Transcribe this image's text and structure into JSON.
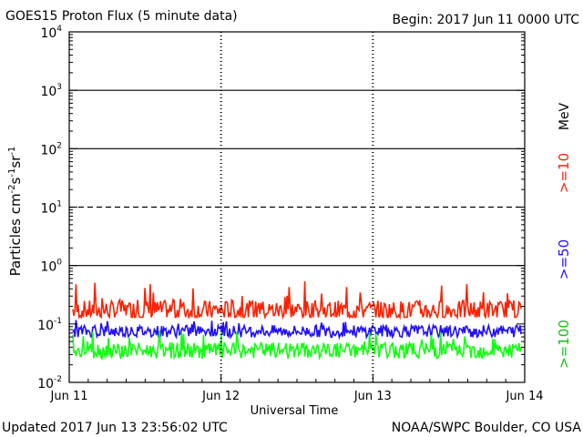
{
  "header": {
    "title": "GOES15 Proton Flux (5 minute data)",
    "begin": "Begin: 2017 Jun 11 0000 UTC"
  },
  "footer": {
    "updated": "Updated 2017 Jun 13 23:56:02 UTC",
    "credit": "NOAA/SWPC Boulder, CO USA"
  },
  "chart_data": {
    "type": "line",
    "y_scale": "log",
    "ylim": [
      0.01,
      10000
    ],
    "y_ticks": [
      {
        "base": "10",
        "exp": "-2",
        "value": 0.01
      },
      {
        "base": "10",
        "exp": "-1",
        "value": 0.1
      },
      {
        "base": "10",
        "exp": "0",
        "value": 1
      },
      {
        "base": "10",
        "exp": "1",
        "value": 10
      },
      {
        "base": "10",
        "exp": "2",
        "value": 100
      },
      {
        "base": "10",
        "exp": "3",
        "value": 1000
      },
      {
        "base": "10",
        "exp": "4",
        "value": 10000
      }
    ],
    "ylabel": {
      "main": "Particles cm",
      "e1": "-2",
      "s": "s",
      "e2": "-1",
      "sr": "sr",
      "e3": "-1"
    },
    "xlabel": "Universal Time",
    "x_ticks": [
      "Jun 11",
      "Jun 12",
      "Jun 13",
      "Jun 14"
    ],
    "xlim": [
      "2017-06-11 00:00",
      "2017-06-14 00:00"
    ],
    "energy_unit": "MeV",
    "reference_lines": [
      {
        "value": 1,
        "style": "solid"
      },
      {
        "value": 10,
        "style": "dashed"
      },
      {
        "value": 100,
        "style": "solid"
      },
      {
        "value": 1000,
        "style": "solid"
      }
    ],
    "series": [
      {
        "name": ">=10",
        "color": "#ff2000",
        "typical": 0.17,
        "min": 0.13,
        "max": 0.55
      },
      {
        "name": ">=50",
        "color": "#2010ff",
        "typical": 0.075,
        "min": 0.05,
        "max": 0.12
      },
      {
        "name": ">=100",
        "color": "#10ff10",
        "typical": 0.035,
        "min": 0.025,
        "max": 0.08
      }
    ]
  }
}
